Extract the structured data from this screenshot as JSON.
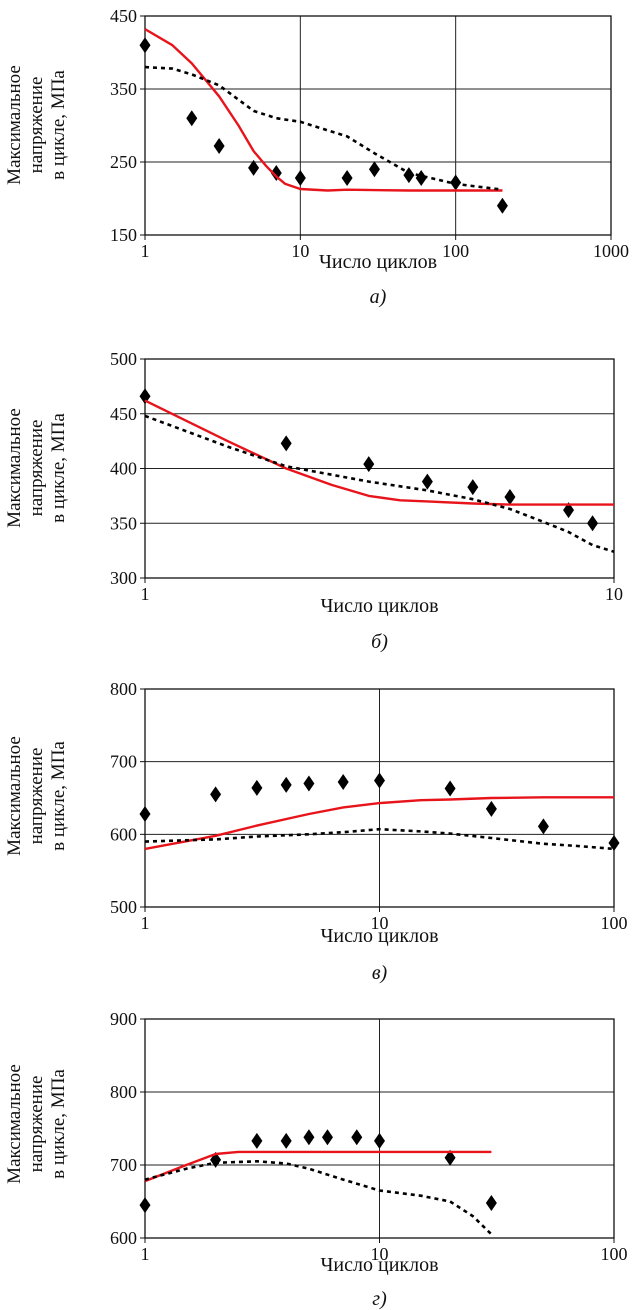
{
  "chart_data": [
    {
      "type": "line",
      "panel_label": "а)",
      "xlabel": "Число циклов",
      "ylabel": [
        "Максимальное",
        "напряжение",
        "в цикле, МПа"
      ],
      "xscale": "log",
      "xlim": [
        1,
        1000
      ],
      "ylim": [
        150,
        450
      ],
      "xticks": [
        1,
        10,
        100,
        1000
      ],
      "yticks": [
        150,
        250,
        350,
        450
      ],
      "grid": true,
      "series": [
        {
          "kind": "scatter",
          "marker": "diamond",
          "color": "#000000",
          "x": [
            1,
            2,
            3,
            5,
            7,
            10,
            20,
            30,
            50,
            60,
            100,
            200
          ],
          "y": [
            410,
            310,
            272,
            242,
            235,
            228,
            228,
            240,
            232,
            228,
            222,
            190
          ]
        },
        {
          "kind": "line",
          "style": "solid",
          "color": "#e8141b",
          "x": [
            1,
            1.5,
            2,
            3,
            4,
            5,
            6,
            7,
            8,
            10,
            15,
            20,
            50,
            100,
            200
          ],
          "y": [
            432,
            410,
            385,
            340,
            300,
            265,
            245,
            230,
            220,
            213,
            211,
            212,
            211,
            211,
            211
          ]
        },
        {
          "kind": "line",
          "style": "dotted",
          "color": "#000000",
          "x": [
            1,
            1.5,
            2,
            3,
            5,
            7,
            10,
            20,
            30,
            50,
            100,
            200
          ],
          "y": [
            380,
            378,
            370,
            355,
            320,
            310,
            305,
            285,
            262,
            235,
            220,
            212
          ]
        }
      ]
    },
    {
      "type": "line",
      "panel_label": "б)",
      "xlabel": "Число циклов",
      "ylabel": [
        "Максимальное",
        "напряжение",
        "в цикле, МПа"
      ],
      "xscale": "log",
      "xlim": [
        1,
        10
      ],
      "ylim": [
        300,
        500
      ],
      "xticks": [
        1,
        10
      ],
      "yticks": [
        300,
        350,
        400,
        450,
        500
      ],
      "grid": true,
      "series": [
        {
          "kind": "scatter",
          "marker": "diamond",
          "color": "#000000",
          "x": [
            1,
            2,
            3,
            4,
            5,
            6,
            8,
            9
          ],
          "y": [
            466,
            423,
            404,
            388,
            383,
            374,
            362,
            350
          ]
        },
        {
          "kind": "line",
          "style": "solid",
          "color": "#e8141b",
          "x": [
            1,
            1.5,
            2,
            2.5,
            3,
            3.5,
            4,
            5,
            6,
            8,
            10
          ],
          "y": [
            462,
            425,
            400,
            385,
            375,
            371,
            370,
            368,
            367,
            367,
            367
          ]
        },
        {
          "kind": "line",
          "style": "dotted",
          "color": "#000000",
          "x": [
            1,
            1.5,
            2,
            3,
            4,
            5,
            6,
            7,
            8,
            9,
            10
          ],
          "y": [
            448,
            420,
            402,
            388,
            380,
            372,
            363,
            352,
            342,
            330,
            324
          ]
        }
      ]
    },
    {
      "type": "line",
      "panel_label": "в)",
      "xlabel": "Число циклов",
      "ylabel": [
        "Максимальное",
        "напряжение",
        "в цикле, МПа"
      ],
      "xscale": "log",
      "xlim": [
        1,
        100
      ],
      "ylim": [
        500,
        800
      ],
      "xticks": [
        1,
        10,
        100
      ],
      "yticks": [
        500,
        600,
        700,
        800
      ],
      "grid": true,
      "series": [
        {
          "kind": "scatter",
          "marker": "diamond",
          "color": "#000000",
          "x": [
            1,
            2,
            3,
            4,
            5,
            7,
            10,
            20,
            30,
            50,
            100
          ],
          "y": [
            628,
            655,
            664,
            668,
            670,
            672,
            674,
            663,
            635,
            611,
            588
          ]
        },
        {
          "kind": "line",
          "style": "solid",
          "color": "#e8141b",
          "x": [
            1,
            2,
            3,
            5,
            7,
            10,
            15,
            20,
            30,
            50,
            100
          ],
          "y": [
            580,
            598,
            612,
            628,
            637,
            643,
            647,
            648,
            650,
            651,
            651
          ]
        },
        {
          "kind": "line",
          "style": "dotted",
          "color": "#000000",
          "x": [
            1,
            2,
            3,
            5,
            7,
            10,
            15,
            20,
            30,
            50,
            70,
            100
          ],
          "y": [
            590,
            593,
            597,
            600,
            603,
            607,
            604,
            601,
            595,
            587,
            584,
            580
          ]
        }
      ]
    },
    {
      "type": "line",
      "panel_label": "г)",
      "xlabel": "Число циклов",
      "ylabel": [
        "Максимальное",
        "напряжение",
        "в цикле, МПа"
      ],
      "xscale": "log",
      "xlim": [
        1,
        100
      ],
      "ylim": [
        600,
        900
      ],
      "xticks": [
        1,
        10,
        100
      ],
      "yticks": [
        600,
        700,
        800,
        900
      ],
      "grid": true,
      "series": [
        {
          "kind": "scatter",
          "marker": "diamond",
          "color": "#000000",
          "x": [
            1,
            2,
            3,
            4,
            5,
            6,
            8,
            10,
            20,
            30
          ],
          "y": [
            645,
            707,
            733,
            733,
            738,
            738,
            738,
            733,
            710,
            648
          ]
        },
        {
          "kind": "line",
          "style": "solid",
          "color": "#e8141b",
          "x": [
            1,
            1.5,
            2,
            2.5,
            3,
            5,
            10,
            20,
            30
          ],
          "y": [
            678,
            700,
            715,
            718,
            718,
            718,
            718,
            718,
            718
          ]
        },
        {
          "kind": "line",
          "style": "dotted",
          "color": "#000000",
          "x": [
            1,
            1.5,
            2,
            3,
            4,
            5,
            7,
            10,
            15,
            20,
            25,
            30
          ],
          "y": [
            680,
            695,
            703,
            705,
            702,
            695,
            680,
            665,
            658,
            650,
            630,
            605
          ]
        }
      ]
    }
  ]
}
